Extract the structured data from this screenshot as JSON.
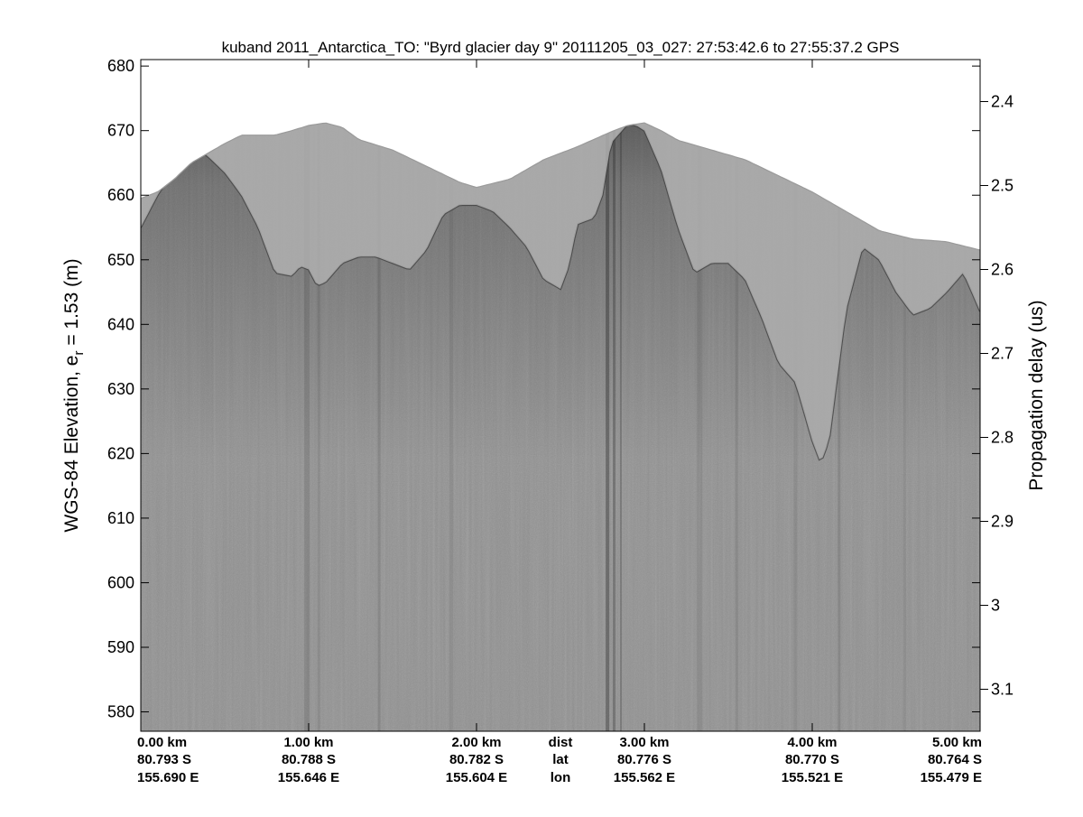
{
  "chart_data": {
    "type": "heatmap",
    "title": "kuband 2011_Antarctica_TO: \"Byrd glacier day 9\"  20111205_03_027: 27:53:42.6 to 27:55:37.2 GPS",
    "ylabel_left": "WGS-84 Elevation, e",
    "ylabel_left_sub": "r",
    "ylabel_left_tail": " = 1.53 (m)",
    "ylabel_right": "Propagation delay (us)",
    "colormap": "gray",
    "grid": false,
    "xlim": [
      0,
      5
    ],
    "ylim_left": [
      577,
      681
    ],
    "ylim_right": [
      2.35,
      3.15
    ],
    "left_ticks": [
      {
        "value": 580,
        "label": "580"
      },
      {
        "value": 590,
        "label": "590"
      },
      {
        "value": 600,
        "label": "600"
      },
      {
        "value": 610,
        "label": "610"
      },
      {
        "value": 620,
        "label": "620"
      },
      {
        "value": 630,
        "label": "630"
      },
      {
        "value": 640,
        "label": "640"
      },
      {
        "value": 650,
        "label": "650"
      },
      {
        "value": 660,
        "label": "660"
      },
      {
        "value": 670,
        "label": "670"
      },
      {
        "value": 680,
        "label": "680"
      }
    ],
    "right_ticks": [
      {
        "value": 2.4,
        "label": "2.4"
      },
      {
        "value": 2.5,
        "label": "2.5"
      },
      {
        "value": 2.6,
        "label": "2.6"
      },
      {
        "value": 2.7,
        "label": "2.7"
      },
      {
        "value": 2.8,
        "label": "2.8"
      },
      {
        "value": 2.9,
        "label": "2.9"
      },
      {
        "value": 3.0,
        "label": "3"
      },
      {
        "value": 3.1,
        "label": "3.1"
      }
    ],
    "x_ticks": [
      {
        "value": 0,
        "dist": "0.00 km",
        "lat": "80.793 S",
        "lon": "155.690 E"
      },
      {
        "value": 1,
        "dist": "1.00 km",
        "lat": "80.788 S",
        "lon": "155.646 E"
      },
      {
        "value": 2,
        "dist": "2.00 km",
        "lat": "80.782 S",
        "lon": "155.604 E"
      },
      {
        "value": 3,
        "dist": "3.00 km",
        "lat": "80.776 S",
        "lon": "155.562 E"
      },
      {
        "value": 4,
        "dist": "4.00 km",
        "lat": "80.770 S",
        "lon": "155.521 E"
      },
      {
        "value": 5,
        "dist": "5.00 km",
        "lat": "80.764 S",
        "lon": "155.479 E"
      }
    ],
    "x_row_labels": {
      "value": 2.5,
      "dist": "dist",
      "lat": "lat",
      "lon": "lon"
    },
    "surface": {
      "x": [
        0.0,
        0.1,
        0.2,
        0.3,
        0.4,
        0.5,
        0.6,
        0.8,
        0.9,
        1.0,
        1.1,
        1.2,
        1.3,
        1.5,
        1.7,
        1.9,
        2.0,
        2.2,
        2.4,
        2.6,
        2.8,
        2.9,
        3.0,
        3.1,
        3.2,
        3.4,
        3.6,
        3.8,
        4.0,
        4.2,
        4.4,
        4.6,
        4.8,
        5.0
      ],
      "y": [
        659.5,
        660.5,
        662.5,
        665,
        666.5,
        668,
        669.3,
        669.3,
        670,
        670.8,
        671.2,
        670.5,
        668.6,
        667,
        664.5,
        662,
        661.2,
        662.5,
        665.5,
        667.5,
        669.8,
        670.8,
        671.2,
        670,
        668.5,
        667,
        665.5,
        663,
        660.5,
        657.5,
        654.5,
        653.2,
        652.8,
        651.5
      ]
    },
    "bed": {
      "x": [
        0.0,
        0.1,
        0.2,
        0.3,
        0.35,
        0.4,
        0.5,
        0.6,
        0.7,
        0.8,
        0.9,
        0.95,
        1.0,
        1.05,
        1.1,
        1.2,
        1.3,
        1.4,
        1.5,
        1.6,
        1.7,
        1.8,
        1.9,
        2.0,
        2.1,
        2.2,
        2.3,
        2.4,
        2.5,
        2.55,
        2.6,
        2.7,
        2.75,
        2.8,
        2.9,
        2.95,
        3.0,
        3.1,
        3.2,
        3.3,
        3.4,
        3.5,
        3.6,
        3.7,
        3.8,
        3.9,
        4.0,
        4.05,
        4.1,
        4.2,
        4.3,
        4.4,
        4.5,
        4.6,
        4.7,
        4.8,
        4.9,
        5.0
      ],
      "y": [
        655,
        660,
        664,
        666.5,
        667,
        666,
        663.5,
        660,
        655,
        648,
        647.5,
        649,
        648.5,
        646,
        646.5,
        649.5,
        650.5,
        650.5,
        649.5,
        648.5,
        651.5,
        657,
        658.5,
        658.5,
        657.5,
        655,
        652,
        647,
        645.5,
        649,
        655.5,
        656.5,
        660,
        668,
        671,
        670.8,
        670,
        664,
        655,
        648,
        649.5,
        649.5,
        647,
        641,
        634,
        631,
        622,
        618.5,
        622,
        642,
        652,
        650,
        645,
        641.5,
        642.5,
        645,
        648,
        642
      ]
    }
  }
}
